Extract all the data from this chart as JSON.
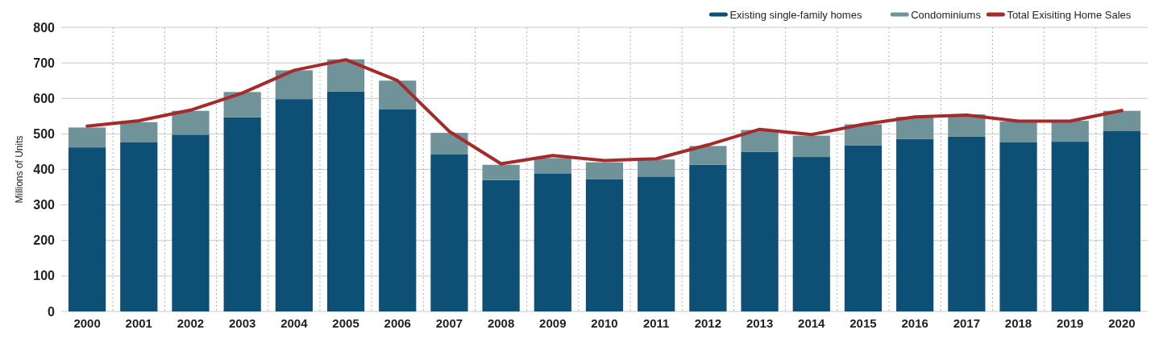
{
  "chart_data": {
    "type": "bar",
    "stacked": true,
    "ylabel": "Millions of Units",
    "categories": [
      "2000",
      "2001",
      "2002",
      "2003",
      "2004",
      "2005",
      "2006",
      "2007",
      "2008",
      "2009",
      "2010",
      "2011",
      "2012",
      "2013",
      "2014",
      "2015",
      "2016",
      "2017",
      "2018",
      "2019",
      "2020"
    ],
    "series": [
      {
        "name": "Existing single-family homes",
        "color": "#0e4f76",
        "values": [
          462,
          476,
          498,
          547,
          598,
          619,
          569,
          442,
          370,
          389,
          373,
          380,
          413,
          449,
          435,
          467,
          486,
          492,
          476,
          478,
          509
        ]
      },
      {
        "name": "Condominiums",
        "color": "#6f9399",
        "values": [
          56,
          57,
          67,
          71,
          81,
          91,
          81,
          61,
          43,
          43,
          47,
          48,
          53,
          62,
          60,
          60,
          62,
          63,
          59,
          59,
          56
        ]
      },
      {
        "name": "Total Exisiting Home Sales",
        "type": "line",
        "color": "#a52a2a",
        "values": [
          522,
          537,
          567,
          615,
          679,
          709,
          650,
          507,
          416,
          439,
          425,
          430,
          469,
          513,
          498,
          527,
          548,
          553,
          536,
          536,
          566
        ]
      }
    ],
    "ylim": [
      0,
      800
    ],
    "yticks": [
      0,
      100,
      200,
      300,
      400,
      500,
      600,
      700,
      800
    ],
    "grid": true,
    "legend": "top right",
    "marker": "none",
    "line_style": "solid"
  }
}
